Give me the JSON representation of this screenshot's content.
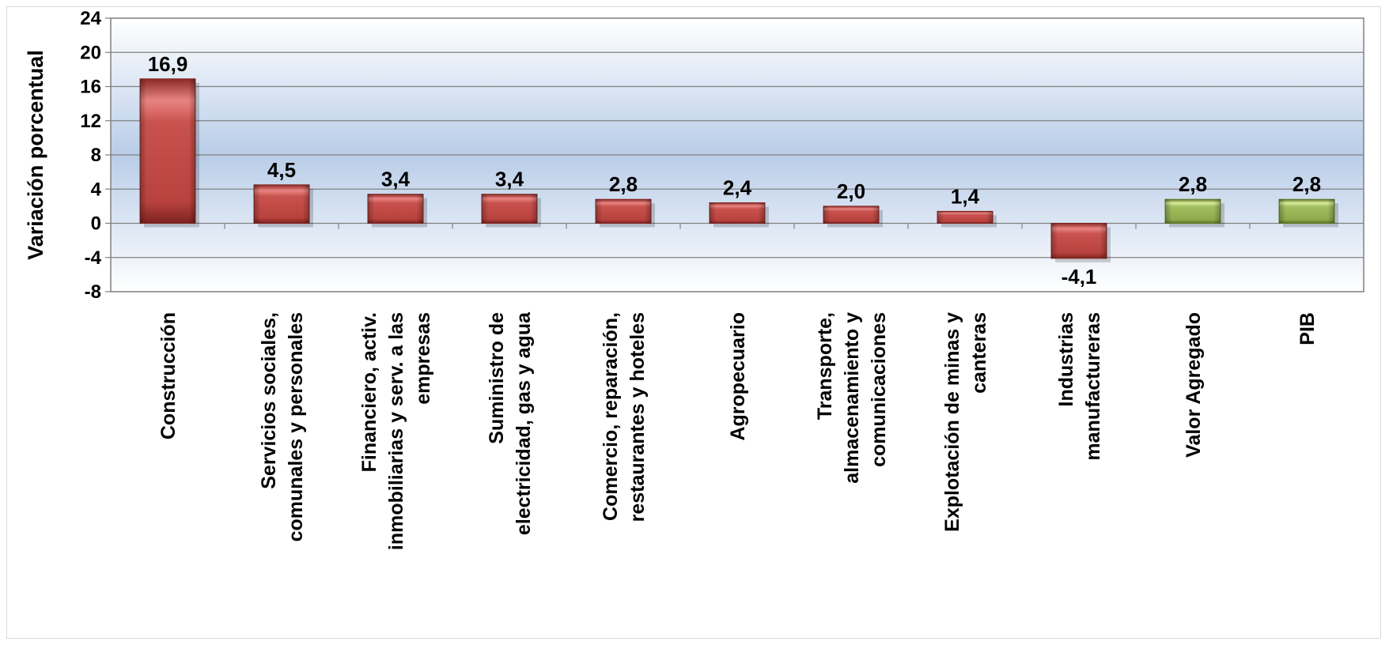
{
  "chart_data": {
    "type": "bar",
    "categories": [
      "Construcción",
      "Servicios sociales, comunales y personales",
      "Financiero, activ. inmobiliarias y serv. a las empresas",
      "Suministro de electricidad, gas y agua",
      "Comercio, reparación, restaurantes y hoteles",
      "Agropecuario",
      "Transporte, almacenamiento y comunicaciones",
      "Explotación de minas y canteras",
      "Industrias manufactureras",
      "Valor Agregado",
      "PIB"
    ],
    "category_lines": [
      [
        "Construcción"
      ],
      [
        "Servicios sociales,",
        "comunales y personales"
      ],
      [
        "Financiero, activ.",
        "inmobiliarias y serv. a las",
        "empresas"
      ],
      [
        "Suministro de",
        "electricidad, gas y agua"
      ],
      [
        "Comercio, reparación,",
        "restaurantes y hoteles"
      ],
      [
        "Agropecuario"
      ],
      [
        "Transporte,",
        "almacenamiento y",
        "comunicaciones"
      ],
      [
        "Explotación de minas y",
        "canteras"
      ],
      [
        "Industrias",
        "manufactureras"
      ],
      [
        "Valor Agregado"
      ],
      [
        "PIB"
      ]
    ],
    "values": [
      16.9,
      4.5,
      3.4,
      3.4,
      2.8,
      2.4,
      2.0,
      1.4,
      -4.1,
      2.8,
      2.8
    ],
    "data_labels": [
      "16,9",
      "4,5",
      "3,4",
      "3,4",
      "2,8",
      "2,4",
      "2,0",
      "1,4",
      "-4,1",
      "2,8",
      "2,8"
    ],
    "bar_colors": [
      "#c0504d",
      "#c0504d",
      "#c0504d",
      "#c0504d",
      "#c0504d",
      "#c0504d",
      "#c0504d",
      "#c0504d",
      "#c0504d",
      "#9bbb59",
      "#9bbb59"
    ],
    "ylabel": "Variación porcentual",
    "xlabel": "",
    "ylim": [
      -8,
      24
    ],
    "yticks": [
      24,
      20,
      16,
      12,
      8,
      4,
      0,
      -4,
      -8
    ],
    "grid": true,
    "legend": "none"
  }
}
